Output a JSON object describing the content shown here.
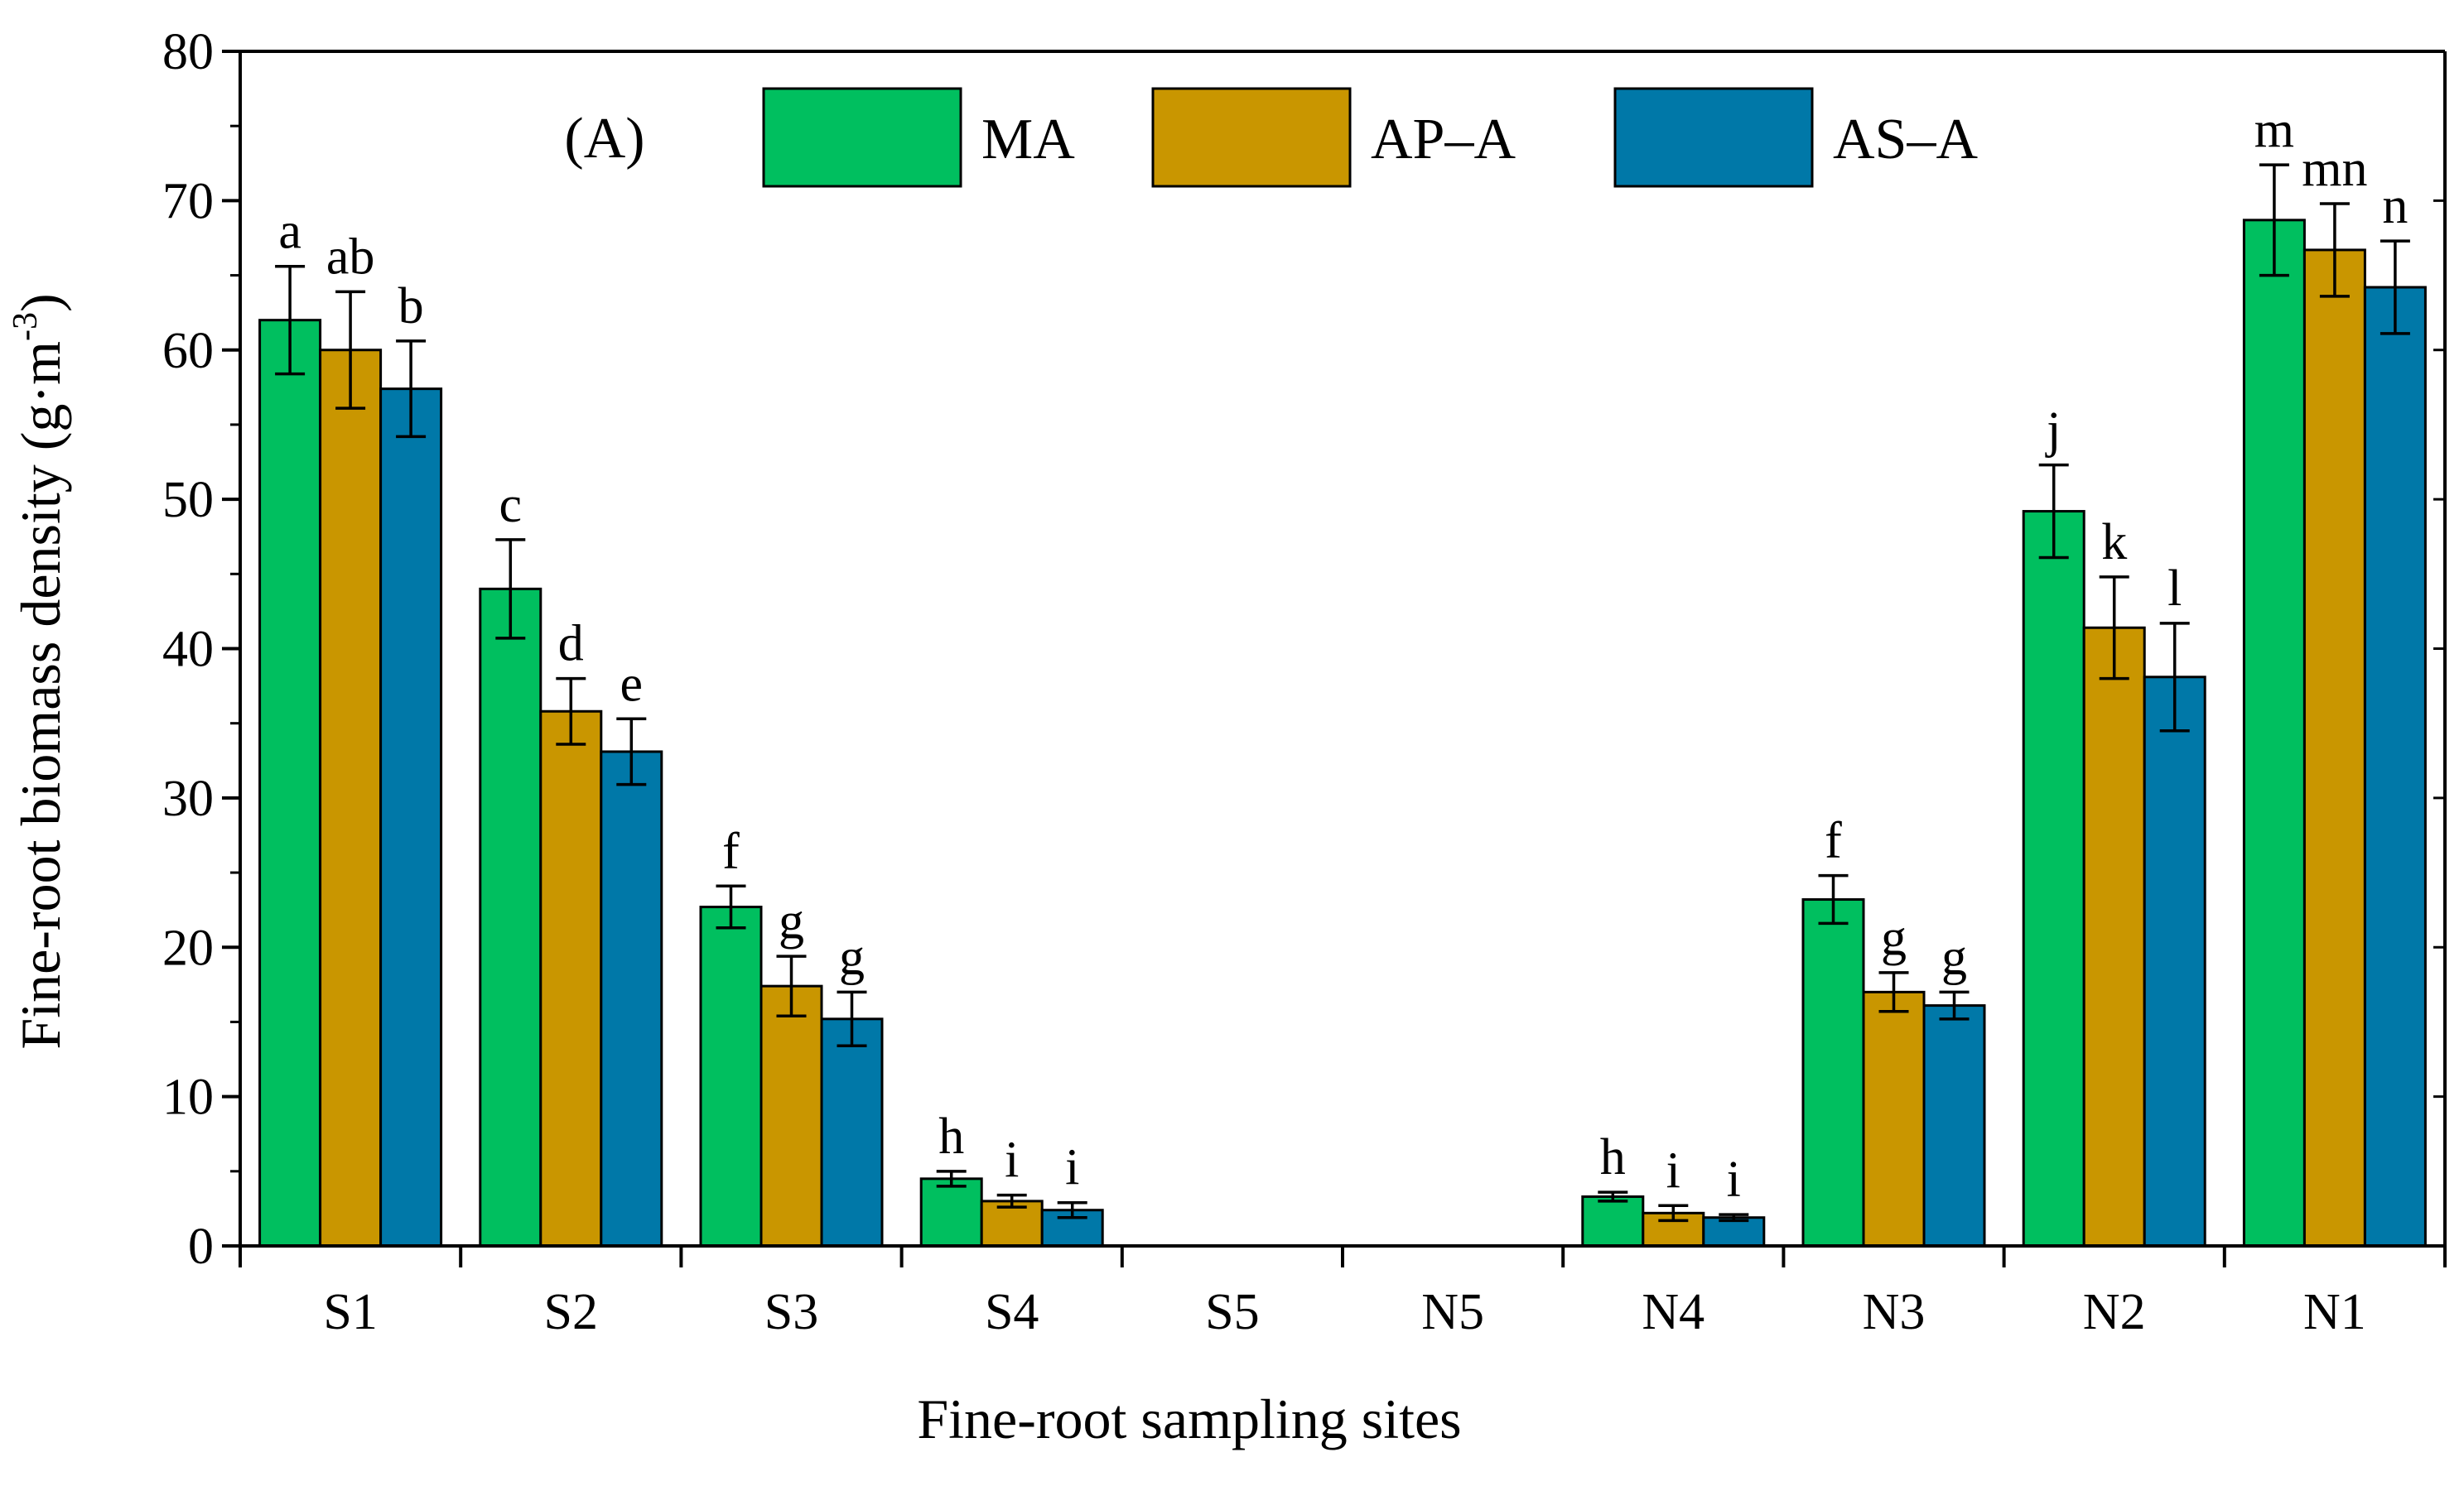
{
  "chart_data": {
    "type": "bar",
    "panel_label": "(A)",
    "xlabel": "Fine-root sampling sites",
    "ylabel": "Fine-root biomass density (g·m",
    "ylabel_sup": "-3",
    "ylabel_close": ")",
    "ylim": [
      0,
      80
    ],
    "yticks": [
      0,
      10,
      20,
      30,
      40,
      50,
      60,
      70,
      80
    ],
    "categories": [
      "S1",
      "S2",
      "S3",
      "S4",
      "S5",
      "N5",
      "N4",
      "N3",
      "N2",
      "N1"
    ],
    "legend_position": "top",
    "series": [
      {
        "name": "MA",
        "color": "#00bf5f",
        "values": [
          62.0,
          44.0,
          22.7,
          4.5,
          0,
          0,
          3.3,
          23.2,
          49.2,
          68.7
        ],
        "errors": [
          3.6,
          3.3,
          1.4,
          0.5,
          0,
          0,
          0.3,
          1.6,
          3.1,
          3.7
        ],
        "letters": [
          "a",
          "c",
          "f",
          "h",
          "",
          "",
          "h",
          "f",
          "j",
          "m"
        ]
      },
      {
        "name": "AP–A",
        "color": "#c99600",
        "values": [
          60.0,
          35.8,
          17.4,
          3.0,
          0,
          0,
          2.2,
          17.0,
          41.4,
          66.7
        ],
        "errors": [
          3.9,
          2.2,
          2.0,
          0.4,
          0,
          0,
          0.5,
          1.3,
          3.4,
          3.1
        ],
        "letters": [
          "ab",
          "d",
          "g",
          "i",
          "",
          "",
          "i",
          "g",
          "k",
          "mn"
        ]
      },
      {
        "name": "AS–A",
        "color": "#0078a8",
        "values": [
          57.4,
          33.1,
          15.2,
          2.4,
          0,
          0,
          1.9,
          16.1,
          38.1,
          64.2
        ],
        "errors": [
          3.2,
          2.2,
          1.8,
          0.5,
          0,
          0,
          0.2,
          0.9,
          3.6,
          3.1
        ],
        "letters": [
          "b",
          "e",
          "g",
          "i",
          "",
          "",
          "i",
          "g",
          "l",
          "n"
        ]
      }
    ]
  }
}
